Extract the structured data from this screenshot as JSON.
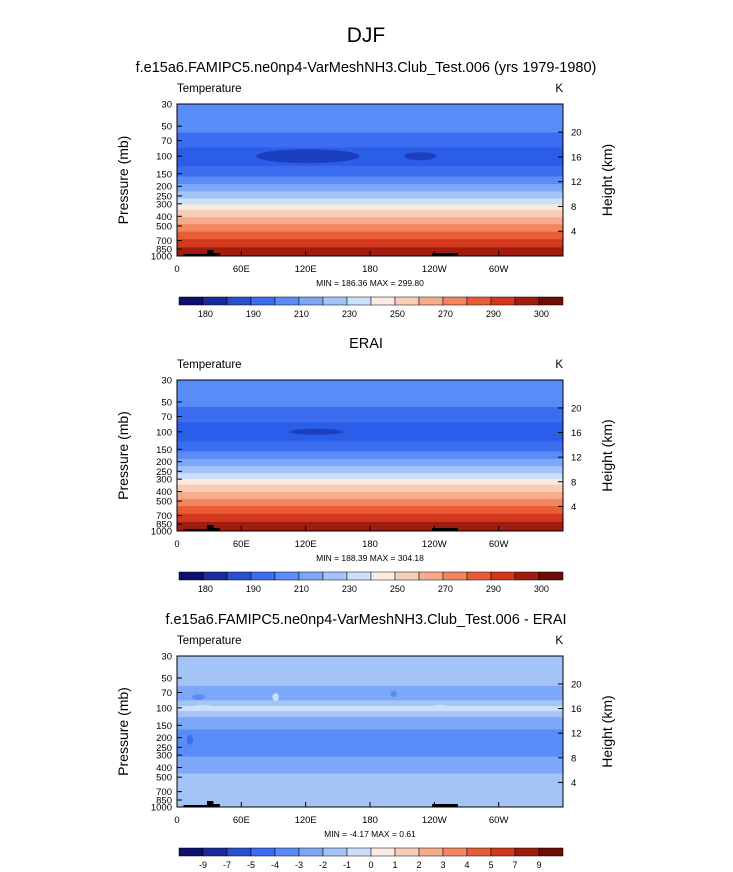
{
  "figure": {
    "title": "DJF"
  },
  "colors": {
    "frame": "#000000",
    "topography": "#000000"
  },
  "chart_data": [
    {
      "type": "heatmap",
      "title": "f.e15a6.FAMIPC5.ne0np4-VarMeshNH3.Club_Test.006 (yrs 1979-1980)",
      "left_label": "Temperature",
      "right_label": "K",
      "xlabel": "",
      "ylabel": "Pressure (mb)",
      "y2label": "Height (km)",
      "xticks": [
        "0",
        "60E",
        "120E",
        "180",
        "120W",
        "60W"
      ],
      "yticks": [
        "30",
        "50",
        "70",
        "100",
        "150",
        "200",
        "250",
        "300",
        "400",
        "500",
        "700",
        "850",
        "1000"
      ],
      "y2ticks": [
        "20",
        "16",
        "12",
        "8",
        "4"
      ],
      "stats": "MIN = 186.36  MAX = 299.80",
      "colorbar_ticks": [
        "180",
        "190",
        "210",
        "230",
        "250",
        "270",
        "290",
        "300"
      ],
      "colorbar_colors": [
        "#0f0f6e",
        "#1c2aa0",
        "#2a4fd0",
        "#3c6cf0",
        "#5a8cf8",
        "#7da8f8",
        "#a4c4f8",
        "#cde0fa",
        "#faeae2",
        "#f8cdb8",
        "#f6ab8c",
        "#f28660",
        "#e85d36",
        "#d2381c",
        "#a01c10",
        "#6e0c08"
      ],
      "min": 186.36,
      "max": 299.8
    },
    {
      "type": "heatmap",
      "title": "ERAI",
      "left_label": "Temperature",
      "right_label": "K",
      "xlabel": "",
      "ylabel": "Pressure (mb)",
      "y2label": "Height (km)",
      "xticks": [
        "0",
        "60E",
        "120E",
        "180",
        "120W",
        "60W"
      ],
      "yticks": [
        "30",
        "50",
        "70",
        "100",
        "150",
        "200",
        "250",
        "300",
        "400",
        "500",
        "700",
        "850",
        "1000"
      ],
      "y2ticks": [
        "20",
        "16",
        "12",
        "8",
        "4"
      ],
      "stats": "MIN = 188.39  MAX = 304.18",
      "colorbar_ticks": [
        "180",
        "190",
        "210",
        "230",
        "250",
        "270",
        "290",
        "300"
      ],
      "colorbar_colors": [
        "#0f0f6e",
        "#1c2aa0",
        "#2a4fd0",
        "#3c6cf0",
        "#5a8cf8",
        "#7da8f8",
        "#a4c4f8",
        "#cde0fa",
        "#faeae2",
        "#f8cdb8",
        "#f6ab8c",
        "#f28660",
        "#e85d36",
        "#d2381c",
        "#a01c10",
        "#6e0c08"
      ],
      "min": 188.39,
      "max": 304.18
    },
    {
      "type": "heatmap",
      "title": "f.e15a6.FAMIPC5.ne0np4-VarMeshNH3.Club_Test.006 - ERAI",
      "left_label": "Temperature",
      "right_label": "K",
      "xlabel": "",
      "ylabel": "Pressure (mb)",
      "y2label": "Height (km)",
      "xticks": [
        "0",
        "60E",
        "120E",
        "180",
        "120W",
        "60W"
      ],
      "yticks": [
        "30",
        "50",
        "70",
        "100",
        "150",
        "200",
        "250",
        "300",
        "400",
        "500",
        "700",
        "850",
        "1000"
      ],
      "y2ticks": [
        "20",
        "16",
        "12",
        "8",
        "4"
      ],
      "stats": "MIN = -4.17  MAX =   0.61",
      "colorbar_ticks": [
        "-9",
        "-7",
        "-5",
        "-4",
        "-3",
        "-2",
        "-1",
        "0",
        "1",
        "2",
        "3",
        "4",
        "5",
        "7",
        "9"
      ],
      "colorbar_colors": [
        "#0f0f6e",
        "#1c2aa0",
        "#2a4fd0",
        "#3c6cf0",
        "#5a8cf8",
        "#7da8f8",
        "#a4c4f8",
        "#cde0fa",
        "#faeae2",
        "#f8cdb8",
        "#f6ab8c",
        "#f28660",
        "#e85d36",
        "#d2381c",
        "#a01c10",
        "#6e0c08"
      ],
      "min": -4.17,
      "max": 0.61
    }
  ]
}
